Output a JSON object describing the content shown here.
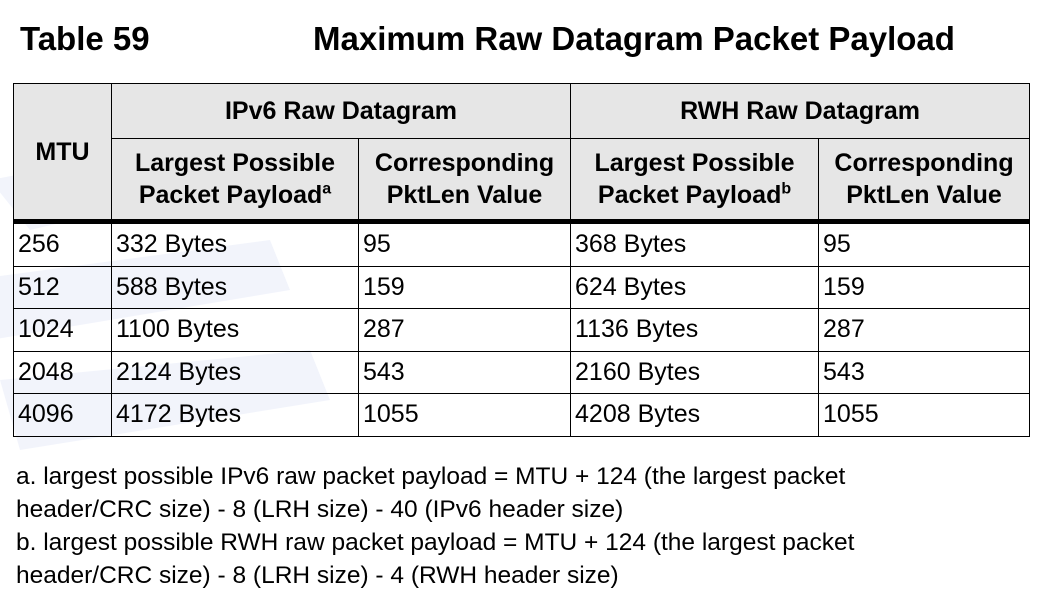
{
  "title": {
    "number": "Table 59",
    "caption": "Maximum Raw Datagram Packet Payload"
  },
  "header": {
    "mtu": "MTU",
    "group_ipv6": "IPv6 Raw Datagram",
    "group_rwh": "RWH Raw Datagram",
    "ipv6_payload": {
      "line1": "Largest Possible",
      "line2": "Packet Payload",
      "sup": "a"
    },
    "ipv6_pktlen": {
      "line1": "Corresponding",
      "line2": "PktLen Value"
    },
    "rwh_payload": {
      "line1": "Largest Possible",
      "line2": "Packet Payload",
      "sup": "b"
    },
    "rwh_pktlen": {
      "line1": "Corresponding",
      "line2": "PktLen Value"
    }
  },
  "rows": [
    {
      "mtu": "256",
      "ipv6_payload": "332 Bytes",
      "ipv6_pktlen": "95",
      "rwh_payload": "368 Bytes",
      "rwh_pktlen": "95"
    },
    {
      "mtu": "512",
      "ipv6_payload": "588 Bytes",
      "ipv6_pktlen": "159",
      "rwh_payload": "624 Bytes",
      "rwh_pktlen": "159"
    },
    {
      "mtu": "1024",
      "ipv6_payload": "1100 Bytes",
      "ipv6_pktlen": "287",
      "rwh_payload": "1136 Bytes",
      "rwh_pktlen": "287"
    },
    {
      "mtu": "2048",
      "ipv6_payload": "2124 Bytes",
      "ipv6_pktlen": "543",
      "rwh_payload": "2160 Bytes",
      "rwh_pktlen": "543"
    },
    {
      "mtu": "4096",
      "ipv6_payload": "4172 Bytes",
      "ipv6_pktlen": "1055",
      "rwh_payload": "4208 Bytes",
      "rwh_pktlen": "1055"
    }
  ],
  "footnotes": {
    "a_line1": "a. largest possible IPv6 raw packet payload = MTU + 124 (the largest packet",
    "a_line2": "header/CRC size) - 8 (LRH size) - 40 (IPv6 header size)",
    "b_line1": "b. largest possible RWH raw packet payload = MTU + 124 (the largest packet",
    "b_line2": "header/CRC size) - 8 (LRH size) - 4 (RWH header size)"
  },
  "colors": {
    "header_bg": "#e6e6e6",
    "watermark": "#3355cc"
  }
}
